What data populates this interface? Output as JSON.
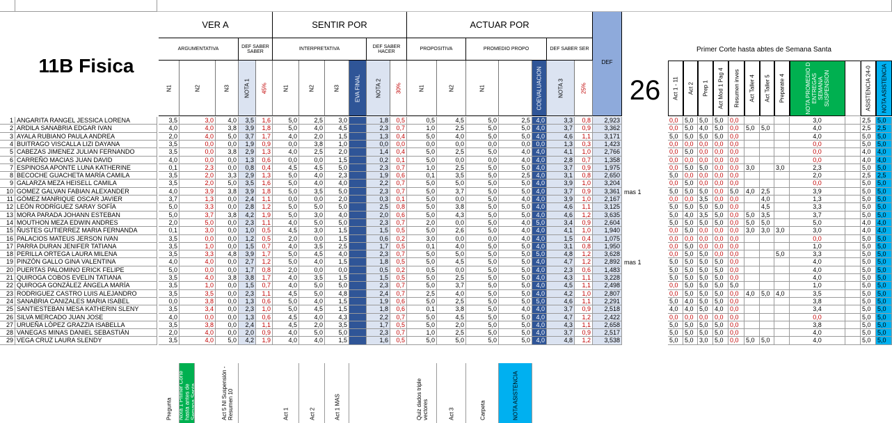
{
  "sheet": {
    "title": "11B Fisica",
    "big_number": "26",
    "right_title": "Primer Corte hasta abtes de Semana Santa",
    "groups": [
      {
        "label": "VER A"
      },
      {
        "label": "SENTIR POR"
      },
      {
        "label": "ACTUAR POR"
      }
    ],
    "subgroups": {
      "argumentativa": "ARGUMENTATIVA",
      "def_saber_saber": "DEF SABER SABER",
      "interpretativa": "INTERPRETATIVA",
      "def_saber_hacer": "DEF SABER HACER",
      "propositiva": "PROPOSITIVA",
      "promedio_propo": "PROMEDIO PROPO",
      "def_saber_ser": "DEF SABER SER",
      "def": "DEF"
    },
    "col_headers": [
      "N1",
      "N2",
      "N3",
      "NOTA 1",
      "45%",
      "N1",
      "N2",
      "N3",
      "EVA FINAL",
      "NOTA 2",
      "30%",
      "N1",
      "N2",
      "N1",
      "",
      "COEVALUACION",
      "NOTA 3",
      "25%"
    ],
    "right_headers": [
      "Act 1 - 11",
      "Act 2",
      "Prep 1",
      "Act Mod 1 Pag 4",
      "Resumen inves",
      "Act Taller 4",
      "Act Taller 5",
      "Preparate 4",
      "NOTA PROMEDIO D ENTREGAS SEMANA SUSPENSION",
      "ASISTENCIA 24-0",
      "NOTA ASISTENCIA"
    ],
    "footer": [
      "Pregunta",
      "Nota 1 Primer Corte hasta antes de Semana Santa",
      "Act 5 NI Suspensión - Resumen 10",
      "Act 1",
      "Act 2",
      "Act 1 MAS",
      "Quiz dados triple vectores",
      "Act 3",
      "Carpeta",
      "NOTA ASISTENCIA"
    ],
    "notes": {
      "row10": "mas 1",
      "row19": "mas 1"
    },
    "colors": {
      "light_blue": "#dbe3f1",
      "dark_blue": "#2f5597",
      "green": "#00b050",
      "cyan": "#00b0f0",
      "red": "#c00000"
    }
  },
  "students": [
    {
      "n": "1",
      "name": "ANGARITA RANGEL JESSICA LORENA",
      "v": [
        "3,5",
        "3,0",
        "4,0",
        "3,5",
        "1,6",
        "5,0",
        "2,5",
        "3,0",
        "",
        "1,8",
        "0,5",
        "0,5",
        "4,5",
        "5,0",
        "2,5",
        "4,0",
        "3,3",
        "0,8",
        "2,923"
      ],
      "r": [
        "0,0",
        "5,0",
        "5,0",
        "5,0",
        "0,0",
        "",
        "",
        "",
        "3,0",
        "2,5",
        "5,0"
      ]
    },
    {
      "n": "2",
      "name": "ARDILA SANABRIA EDGAR IVAN",
      "v": [
        "4,0",
        "4,0",
        "3,8",
        "3,9",
        "1,8",
        "5,0",
        "4,0",
        "4,5",
        "",
        "2,3",
        "0,7",
        "1,0",
        "2,5",
        "5,0",
        "5,0",
        "4,0",
        "3,7",
        "0,9",
        "3,362"
      ],
      "r": [
        "0,0",
        "5,0",
        "4,0",
        "5,0",
        "0,0",
        "5,0",
        "5,0",
        "",
        "4,0",
        "2,5",
        "2,5"
      ]
    },
    {
      "n": "3",
      "name": "AYALA RUBIANO PAULA ANDREA",
      "v": [
        "2,0",
        "4,0",
        "5,0",
        "3,7",
        "1,7",
        "4,0",
        "2,0",
        "1,5",
        "",
        "1,3",
        "0,4",
        "5,0",
        "4,0",
        "5,0",
        "5,0",
        "4,0",
        "4,6",
        "1,1",
        "3,171"
      ],
      "r": [
        "5,0",
        "5,0",
        "5,0",
        "5,0",
        "0,0",
        "",
        "",
        "",
        "4,0",
        "5,0",
        "5,0"
      ]
    },
    {
      "n": "4",
      "name": "BUITRAGO VISCALLA LIZI DAYANA",
      "v": [
        "3,5",
        "0,0",
        "0,0",
        "1,9",
        "0,9",
        "0,0",
        "3,8",
        "1,0",
        "",
        "0,0",
        "0,0",
        "0,0",
        "0,0",
        "0,0",
        "0,0",
        "0,0",
        "1,3",
        "0,3",
        "1,423"
      ],
      "r": [
        "0,0",
        "0,0",
        "0,0",
        "0,0",
        "0,0",
        "",
        "",
        "",
        "0,0",
        "5,0",
        "5,0"
      ]
    },
    {
      "n": "5",
      "name": "CABEZAS JIMENEZ JULIAN FERNANDO",
      "v": [
        "3,5",
        "0,0",
        "3,8",
        "2,9",
        "1,3",
        "4,0",
        "2,5",
        "2,0",
        "",
        "1,4",
        "0,4",
        "5,0",
        "2,5",
        "5,0",
        "4,0",
        "4,0",
        "4,1",
        "1,0",
        "2,766"
      ],
      "r": [
        "0,0",
        "5,0",
        "0,0",
        "0,0",
        "0,0",
        "",
        "",
        "",
        "0,0",
        "4,0",
        "4,0"
      ]
    },
    {
      "n": "6",
      "name": "CARREÑO MACIAS JUAN DAVID",
      "v": [
        "4,0",
        "0,0",
        "0,0",
        "1,3",
        "0,6",
        "0,0",
        "0,0",
        "1,5",
        "",
        "0,2",
        "0,1",
        "5,0",
        "0,0",
        "0,0",
        "4,0",
        "4,0",
        "2,8",
        "0,7",
        "1,358"
      ],
      "r": [
        "0,0",
        "0,0",
        "0,0",
        "0,0",
        "0,0",
        "",
        "",
        "",
        "0,0",
        "4,0",
        "4,0"
      ]
    },
    {
      "n": "7",
      "name": "ESPINOSA APONTE LUNA KATHERINE",
      "v": [
        "0,1",
        "2,3",
        "0,0",
        "0,8",
        "0,4",
        "4,5",
        "4,5",
        "5,0",
        "",
        "2,3",
        "0,7",
        "1,0",
        "2,5",
        "5,0",
        "5,0",
        "4,0",
        "3,7",
        "0,9",
        "1,975"
      ],
      "r": [
        "0,0",
        "5,0",
        "5,0",
        "0,0",
        "0,0",
        "3,0",
        "",
        "3,0",
        "2,3",
        "5,0",
        "5,0"
      ]
    },
    {
      "n": "8",
      "name": "BECOCHE GUACHETA MARÍA CAMILA",
      "v": [
        "3,5",
        "2,0",
        "3,3",
        "2,9",
        "1,3",
        "5,0",
        "4,0",
        "2,3",
        "",
        "1,9",
        "0,6",
        "0,1",
        "3,5",
        "5,0",
        "2,5",
        "4,0",
        "3,1",
        "0,8",
        "2,650"
      ],
      "r": [
        "5,0",
        "0,0",
        "0,0",
        "0,0",
        "0,0",
        "",
        "",
        "",
        "2,0",
        "2,5",
        "2,5"
      ]
    },
    {
      "n": "9",
      "name": "GALARZA MEZA HEISELL CAMILA",
      "v": [
        "3,5",
        "2,0",
        "5,0",
        "3,5",
        "1,6",
        "5,0",
        "4,0",
        "4,0",
        "",
        "2,2",
        "0,7",
        "5,0",
        "5,0",
        "5,0",
        "5,0",
        "4,0",
        "3,9",
        "1,0",
        "3,204"
      ],
      "r": [
        "0,0",
        "5,0",
        "0,0",
        "0,0",
        "0,0",
        "",
        "",
        "",
        "0,0",
        "5,0",
        "5,0"
      ]
    },
    {
      "n": "10",
      "name": "GOMEZ GALVAN FABIAN ALEXANDER",
      "v": [
        "4,0",
        "3,9",
        "3,8",
        "3,9",
        "1,8",
        "5,0",
        "3,5",
        "5,0",
        "",
        "2,3",
        "0,7",
        "5,0",
        "3,7",
        "5,0",
        "5,0",
        "4,0",
        "3,7",
        "0,9",
        "3,361"
      ],
      "r": [
        "5,0",
        "5,0",
        "5,0",
        "0,0",
        "5,0",
        "4,0",
        "2,5",
        "",
        "3,9",
        "5,0",
        "5,0"
      ]
    },
    {
      "n": "11",
      "name": "GÓMEZ MANRIQUE OSCAR JAVIER",
      "v": [
        "3,7",
        "1,3",
        "0,0",
        "2,4",
        "1,1",
        "0,0",
        "0,0",
        "2,0",
        "",
        "0,3",
        "0,1",
        "5,0",
        "0,0",
        "5,0",
        "4,0",
        "4,0",
        "3,9",
        "1,0",
        "2,167"
      ],
      "r": [
        "0,0",
        "0,0",
        "3,5",
        "0,0",
        "0,0",
        "",
        "4,0",
        "",
        "1,3",
        "5,0",
        "5,0"
      ]
    },
    {
      "n": "12",
      "name": "LEÓN RODRÍGUEZ SARAY SOFÍA",
      "v": [
        "5,0",
        "3,3",
        "0,0",
        "2,8",
        "1,2",
        "5,0",
        "5,0",
        "5,0",
        "",
        "2,5",
        "0,8",
        "5,0",
        "3,8",
        "5,0",
        "5,0",
        "4,0",
        "4,6",
        "1,1",
        "3,125"
      ],
      "r": [
        "5,0",
        "5,0",
        "5,0",
        "5,0",
        "0,0",
        "",
        "4,5",
        "",
        "3,3",
        "5,0",
        "5,0"
      ]
    },
    {
      "n": "13",
      "name": "MORA PARADA JOHANN ESTEBAN",
      "v": [
        "5,0",
        "3,7",
        "3,8",
        "4,2",
        "1,9",
        "5,0",
        "3,0",
        "4,0",
        "",
        "2,0",
        "0,6",
        "5,0",
        "4,3",
        "5,0",
        "5,0",
        "4,0",
        "4,6",
        "1,2",
        "3,635"
      ],
      "r": [
        "5,0",
        "4,0",
        "3,5",
        "5,0",
        "0,0",
        "5,0",
        "3,5",
        "",
        "3,7",
        "5,0",
        "5,0"
      ]
    },
    {
      "n": "14",
      "name": "MOUTHON MEZA EDWIN ANDRES",
      "v": [
        "2,0",
        "5,0",
        "0,0",
        "2,3",
        "1,1",
        "4,0",
        "5,0",
        "5,0",
        "",
        "2,3",
        "0,7",
        "2,0",
        "0,0",
        "5,0",
        "4,0",
        "5,0",
        "3,4",
        "0,9",
        "2,604"
      ],
      "r": [
        "5,0",
        "5,0",
        "5,0",
        "5,0",
        "0,0",
        "5,0",
        "5,0",
        "",
        "5,0",
        "4,0",
        "4,0"
      ]
    },
    {
      "n": "15",
      "name": "ÑUSTES GUTIERREZ MARIA FERNANDA",
      "v": [
        "0,1",
        "3,0",
        "0,0",
        "1,0",
        "0,5",
        "4,5",
        "3,0",
        "1,5",
        "",
        "1,5",
        "0,5",
        "5,0",
        "2,6",
        "5,0",
        "4,0",
        "4,0",
        "4,1",
        "1,0",
        "1,940"
      ],
      "r": [
        "0,0",
        "5,0",
        "0,0",
        "0,0",
        "0,0",
        "3,0",
        "3,0",
        "3,0",
        "3,0",
        "4,0",
        "4,0"
      ]
    },
    {
      "n": "16",
      "name": "PALACIOS MATEUS JERSON IVAN",
      "v": [
        "3,5",
        "0,0",
        "0,0",
        "1,2",
        "0,5",
        "2,0",
        "0,0",
        "1,5",
        "",
        "0,6",
        "0,2",
        "3,0",
        "0,0",
        "0,0",
        "4,0",
        "4,0",
        "1,5",
        "0,4",
        "1,075"
      ],
      "r": [
        "0,0",
        "0,0",
        "0,0",
        "0,0",
        "0,0",
        "",
        "",
        "",
        "0,0",
        "5,0",
        "5,0"
      ]
    },
    {
      "n": "17",
      "name": "PARRA DURAN JENIFER TATIANA",
      "v": [
        "3,5",
        "1,0",
        "0,0",
        "1,5",
        "0,7",
        "4,0",
        "3,5",
        "2,5",
        "",
        "1,7",
        "0,5",
        "0,1",
        "4,0",
        "5,0",
        "5,0",
        "4,0",
        "3,1",
        "0,8",
        "1,950"
      ],
      "r": [
        "0,0",
        "5,0",
        "0,0",
        "0,0",
        "0,0",
        "",
        "",
        "",
        "1,0",
        "5,0",
        "5,0"
      ]
    },
    {
      "n": "18",
      "name": "PERILLA ORTEGA LAURA MILENA",
      "v": [
        "3,5",
        "3,3",
        "4,8",
        "3,9",
        "1,7",
        "5,0",
        "4,5",
        "4,0",
        "",
        "2,3",
        "0,7",
        "5,0",
        "5,0",
        "5,0",
        "5,0",
        "5,0",
        "4,8",
        "1,2",
        "3,628"
      ],
      "r": [
        "0,0",
        "5,0",
        "5,0",
        "0,0",
        "0,0",
        "",
        "",
        "5,0",
        "3,3",
        "5,0",
        "5,0"
      ]
    },
    {
      "n": "19",
      "name": "PINZÓN GALLO GINA VALENTINA",
      "v": [
        "4,0",
        "4,0",
        "0,0",
        "2,7",
        "1,2",
        "5,0",
        "4,0",
        "1,5",
        "",
        "1,8",
        "0,5",
        "5,0",
        "4,5",
        "5,0",
        "5,0",
        "4,0",
        "4,7",
        "1,2",
        "2,892"
      ],
      "r": [
        "5,0",
        "5,0",
        "5,0",
        "5,0",
        "0,0",
        "",
        "",
        "",
        "4,0",
        "5,0",
        "5,0"
      ]
    },
    {
      "n": "20",
      "name": "PUERTAS PALOMINO ERICK FELIPE",
      "v": [
        "5,0",
        "0,0",
        "0,0",
        "1,7",
        "0,8",
        "2,0",
        "0,0",
        "0,0",
        "",
        "0,5",
        "0,2",
        "0,5",
        "0,0",
        "5,0",
        "5,0",
        "4,0",
        "2,3",
        "0,6",
        "1,483"
      ],
      "r": [
        "5,0",
        "5,0",
        "5,0",
        "5,0",
        "0,0",
        "",
        "",
        "",
        "4,0",
        "5,0",
        "5,0"
      ]
    },
    {
      "n": "21",
      "name": "QUIROGA COBOS EVELIN TATIANA",
      "v": [
        "3,5",
        "4,0",
        "3,8",
        "3,8",
        "1,7",
        "4,0",
        "3,5",
        "1,5",
        "",
        "1,5",
        "0,5",
        "5,0",
        "2,5",
        "5,0",
        "5,0",
        "4,0",
        "4,3",
        "1,1",
        "3,228"
      ],
      "r": [
        "5,0",
        "5,0",
        "5,0",
        "5,0",
        "0,0",
        "",
        "",
        "",
        "4,0",
        "5,0",
        "5,0"
      ]
    },
    {
      "n": "22",
      "name": "QUIROGA GONZÁLEZ ÁNGELA MARÍA",
      "v": [
        "3,5",
        "1,0",
        "0,0",
        "1,5",
        "0,7",
        "4,0",
        "5,0",
        "5,0",
        "",
        "2,3",
        "0,7",
        "5,0",
        "3,7",
        "5,0",
        "5,0",
        "4,0",
        "4,5",
        "1,1",
        "2,498"
      ],
      "r": [
        "0,0",
        "5,0",
        "5,0",
        "5,0",
        "5,0",
        "",
        "",
        "",
        "1,0",
        "5,0",
        "5,0"
      ]
    },
    {
      "n": "23",
      "name": "RODRIGUEZ CASTRO LUIS ALEJANDRO",
      "v": [
        "3,5",
        "3,5",
        "0,0",
        "2,3",
        "1,1",
        "4,5",
        "5,0",
        "4,8",
        "",
        "2,4",
        "0,7",
        "2,5",
        "4,0",
        "5,0",
        "5,0",
        "4,0",
        "4,2",
        "1,0",
        "2,807"
      ],
      "r": [
        "0,0",
        "5,0",
        "5,0",
        "5,0",
        "0,0",
        "4,0",
        "5,0",
        "4,0",
        "3,5",
        "5,0",
        "5,0"
      ]
    },
    {
      "n": "24",
      "name": "SANABRIA CANIZALES MARIA ISABEL",
      "v": [
        "0,0",
        "3,8",
        "0,0",
        "1,3",
        "0,6",
        "5,0",
        "4,0",
        "1,5",
        "",
        "1,9",
        "0,6",
        "5,0",
        "2,5",
        "5,0",
        "5,0",
        "5,0",
        "4,6",
        "1,1",
        "2,291"
      ],
      "r": [
        "5,0",
        "4,0",
        "5,0",
        "5,0",
        "0,0",
        "",
        "",
        "",
        "3,8",
        "5,0",
        "5,0"
      ]
    },
    {
      "n": "25",
      "name": "SANTIESTEBAN MESA KATHERIN SLENY",
      "v": [
        "3,5",
        "3,4",
        "0,0",
        "2,3",
        "1,0",
        "5,0",
        "4,5",
        "1,5",
        "",
        "1,8",
        "0,6",
        "0,1",
        "3,8",
        "5,0",
        "4,0",
        "4,0",
        "3,7",
        "0,9",
        "2,518"
      ],
      "r": [
        "4,0",
        "4,0",
        "5,0",
        "4,0",
        "0,0",
        "",
        "",
        "",
        "3,4",
        "5,0",
        "5,0"
      ]
    },
    {
      "n": "26",
      "name": "SILVA MERCADO JUAN JOSE",
      "v": [
        "4,0",
        "0,0",
        "0,0",
        "1,3",
        "0,6",
        "4,5",
        "4,0",
        "4,3",
        "",
        "2,2",
        "0,7",
        "5,0",
        "4,5",
        "5,0",
        "5,0",
        "4,0",
        "4,7",
        "1,2",
        "2,422"
      ],
      "r": [
        "0,0",
        "0,0",
        "0,0",
        "0,0",
        "0,0",
        "",
        "",
        "",
        "0,0",
        "5,0",
        "5,0"
      ]
    },
    {
      "n": "27",
      "name": "URUEÑA LÓPEZ GRAZZIA ISABELLA",
      "v": [
        "3,5",
        "3,8",
        "0,0",
        "2,4",
        "1,1",
        "4,5",
        "2,0",
        "3,5",
        "",
        "1,7",
        "0,5",
        "5,0",
        "2,0",
        "5,0",
        "5,0",
        "4,0",
        "4,3",
        "1,1",
        "2,658"
      ],
      "r": [
        "5,0",
        "5,0",
        "5,0",
        "5,0",
        "0,0",
        "",
        "",
        "",
        "3,8",
        "5,0",
        "5,0"
      ]
    },
    {
      "n": "28",
      "name": "VANEGAS MINAS DANIEL SEBASTIÁN",
      "v": [
        "2,0",
        "4,0",
        "0,0",
        "2,0",
        "0,9",
        "4,0",
        "5,0",
        "5,0",
        "",
        "2,3",
        "0,7",
        "1,0",
        "2,5",
        "5,0",
        "5,0",
        "4,0",
        "3,7",
        "0,9",
        "2,517"
      ],
      "r": [
        "5,0",
        "5,0",
        "5,0",
        "5,0",
        "0,0",
        "",
        "",
        "",
        "4,0",
        "5,0",
        "5,0"
      ]
    },
    {
      "n": "29",
      "name": "VEGA CRUZ LAURA SLENDY",
      "v": [
        "3,5",
        "4,0",
        "5,0",
        "4,2",
        "1,9",
        "4,0",
        "4,0",
        "1,5",
        "",
        "1,6",
        "0,5",
        "5,0",
        "5,0",
        "5,0",
        "5,0",
        "4,0",
        "4,8",
        "1,2",
        "3,538"
      ],
      "r": [
        "5,0",
        "5,0",
        "3,0",
        "5,0",
        "0,0",
        "5,0",
        "5,0",
        "",
        "4,0",
        "5,0",
        "5,0"
      ]
    }
  ]
}
